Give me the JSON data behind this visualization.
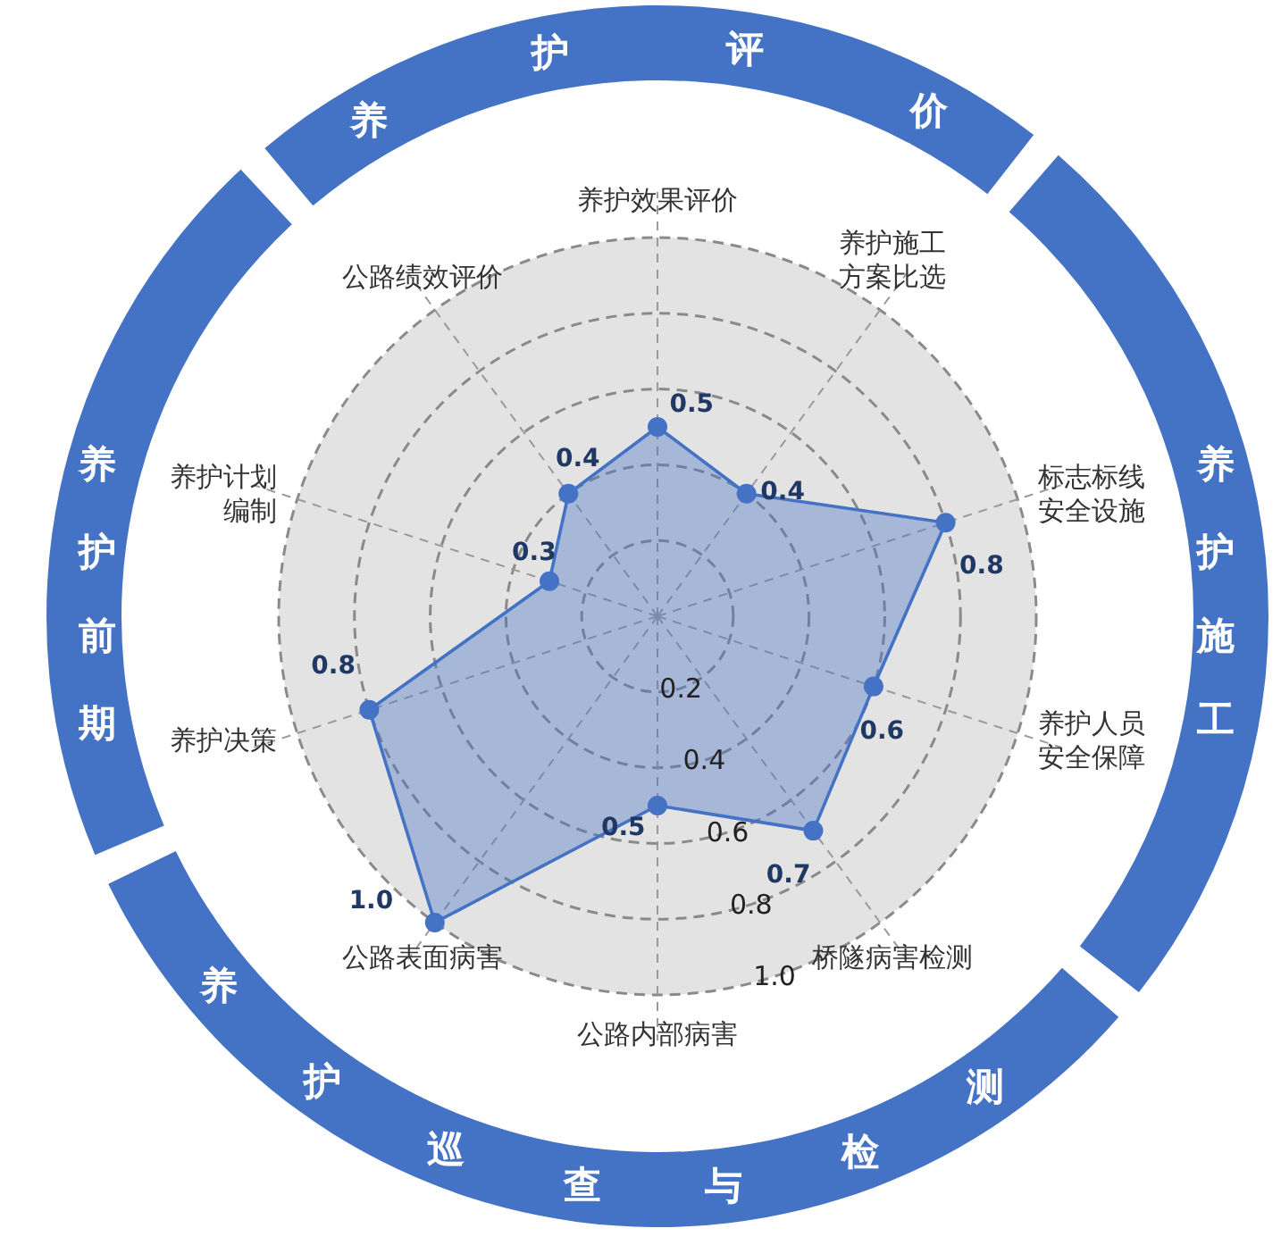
{
  "chart_data": {
    "type": "radar",
    "categories": [
      "养护效果评价",
      "养护施工方案比选",
      "标志标线安全设施",
      "养护人员安全保障",
      "桥隧病害检测",
      "公路内部病害",
      "公路表面病害",
      "养护决策",
      "养护计划编制",
      "公路绩效评价"
    ],
    "series": [
      {
        "color": "#4472c4",
        "values": [
          0.5,
          0.4,
          0.8,
          0.6,
          0.7,
          0.5,
          1.0,
          0.8,
          0.3,
          0.4
        ],
        "value_labels": [
          "0.5",
          "0.4",
          "0.8",
          "0.6",
          "0.7",
          "0.5",
          "1.0",
          "0.8",
          "0.3",
          "0.4"
        ]
      }
    ],
    "ylim": [
      0,
      1
    ],
    "yticks": [
      0.2,
      0.4,
      0.6,
      0.8,
      {
        "value": 1,
        "label": "1.0"
      }
    ],
    "grid": true,
    "marker": "circle",
    "annotations": [
      "养护评价",
      "养护施工",
      "养护巡查与检测",
      "养护前期"
    ]
  }
}
